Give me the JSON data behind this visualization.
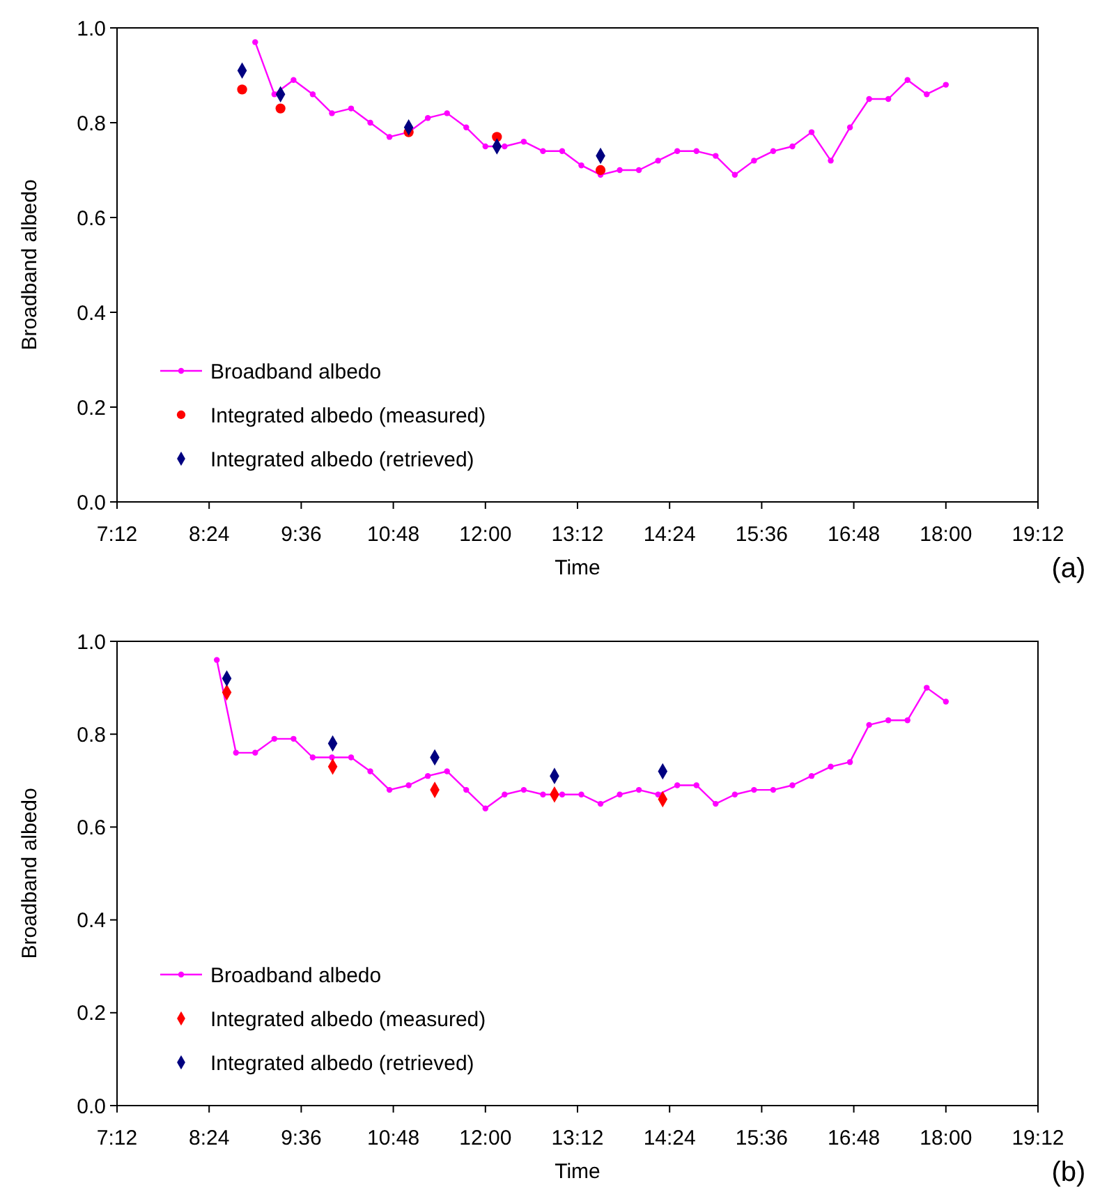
{
  "chart_data": [
    {
      "type": "line",
      "xlabel": "Time",
      "ylabel": "Broadband albedo",
      "xlim": [
        7.2,
        19.2
      ],
      "xticks": [
        {
          "value": 7.2,
          "label": "7:12"
        },
        {
          "value": 8.4,
          "label": "8:24"
        },
        {
          "value": 9.6,
          "label": "9:36"
        },
        {
          "value": 10.8,
          "label": "10:48"
        },
        {
          "value": 12,
          "label": "12:00"
        },
        {
          "value": 13.2,
          "label": "13:12"
        },
        {
          "value": 14.4,
          "label": "14:24"
        },
        {
          "value": 15.6,
          "label": "15:36"
        },
        {
          "value": 16.8,
          "label": "16:48"
        },
        {
          "value": 18,
          "label": "18:00"
        },
        {
          "value": 19.2,
          "label": "19:12"
        }
      ],
      "ylim": [
        0,
        1
      ],
      "yticks": [
        {
          "value": 0,
          "label": "0.0"
        },
        {
          "value": 0.2,
          "label": "0.2"
        },
        {
          "value": 0.4,
          "label": "0.4"
        },
        {
          "value": 0.6,
          "label": "0.6"
        },
        {
          "value": 0.8,
          "label": "0.8"
        },
        {
          "value": 1,
          "label": "1.0"
        }
      ],
      "grid": false,
      "legend": "bottom left",
      "annotations": [
        "(a)"
      ],
      "series": [
        {
          "name": "Broadband albedo",
          "color": "#ff00ff",
          "marker": "circle",
          "line_style": "solid",
          "x": [
            9,
            9.25,
            9.5,
            9.75,
            10,
            10.25,
            10.5,
            10.75,
            11,
            11.25,
            11.5,
            11.75,
            12,
            12.25,
            12.5,
            12.75,
            13,
            13.25,
            13.5,
            13.75,
            14,
            14.25,
            14.5,
            14.75,
            15,
            15.25,
            15.5,
            15.75,
            16,
            16.25,
            16.5,
            16.75,
            17,
            17.25,
            17.5,
            17.75,
            18
          ],
          "values": [
            0.97,
            0.86,
            0.89,
            0.86,
            0.82,
            0.83,
            0.8,
            0.77,
            0.78,
            0.81,
            0.82,
            0.79,
            0.75,
            0.75,
            0.76,
            0.74,
            0.74,
            0.71,
            0.69,
            0.7,
            0.7,
            0.72,
            0.74,
            0.74,
            0.73,
            0.69,
            0.72,
            0.74,
            0.75,
            0.78,
            0.72,
            0.79,
            0.85,
            0.85,
            0.89,
            0.86,
            0.88
          ]
        },
        {
          "name": "Integrated albedo (measured)",
          "type": "scatter",
          "color": "#ff0000",
          "marker": "circle",
          "x": [
            8.83,
            9.33,
            11,
            12.15,
            13.5
          ],
          "values": [
            0.87,
            0.83,
            0.78,
            0.77,
            0.7
          ]
        },
        {
          "name": "Integrated albedo (retrieved)",
          "type": "scatter",
          "color": "#000080",
          "marker": "diamond",
          "x": [
            8.83,
            9.33,
            11,
            12.15,
            13.5
          ],
          "values": [
            0.91,
            0.86,
            0.79,
            0.75,
            0.73
          ]
        }
      ]
    },
    {
      "type": "line",
      "xlabel": "Time",
      "ylabel": "Broadband albedo",
      "xlim": [
        7.2,
        19.2
      ],
      "xticks": [
        {
          "value": 7.2,
          "label": "7:12"
        },
        {
          "value": 8.4,
          "label": "8:24"
        },
        {
          "value": 9.6,
          "label": "9:36"
        },
        {
          "value": 10.8,
          "label": "10:48"
        },
        {
          "value": 12,
          "label": "12:00"
        },
        {
          "value": 13.2,
          "label": "13:12"
        },
        {
          "value": 14.4,
          "label": "14:24"
        },
        {
          "value": 15.6,
          "label": "15:36"
        },
        {
          "value": 16.8,
          "label": "16:48"
        },
        {
          "value": 18,
          "label": "18:00"
        },
        {
          "value": 19.2,
          "label": "19:12"
        }
      ],
      "ylim": [
        0,
        1
      ],
      "yticks": [
        {
          "value": 0,
          "label": "0.0"
        },
        {
          "value": 0.2,
          "label": "0.2"
        },
        {
          "value": 0.4,
          "label": "0.4"
        },
        {
          "value": 0.6,
          "label": "0.6"
        },
        {
          "value": 0.8,
          "label": "0.8"
        },
        {
          "value": 1,
          "label": "1.0"
        }
      ],
      "grid": false,
      "legend": "bottom left",
      "annotations": [
        "(b)"
      ],
      "series": [
        {
          "name": "Broadband albedo",
          "color": "#ff00ff",
          "marker": "circle",
          "line_style": "solid",
          "x": [
            8.5,
            8.75,
            9,
            9.25,
            9.5,
            9.75,
            10,
            10.25,
            10.5,
            10.75,
            11,
            11.25,
            11.5,
            11.75,
            12,
            12.25,
            12.5,
            12.75,
            13,
            13.25,
            13.5,
            13.75,
            14,
            14.25,
            14.5,
            14.75,
            15,
            15.25,
            15.5,
            15.75,
            16,
            16.25,
            16.5,
            16.75,
            17,
            17.25,
            17.5,
            17.75,
            18
          ],
          "values": [
            0.96,
            0.76,
            0.76,
            0.79,
            0.79,
            0.75,
            0.75,
            0.75,
            0.72,
            0.68,
            0.69,
            0.71,
            0.72,
            0.68,
            0.64,
            0.67,
            0.68,
            0.67,
            0.67,
            0.67,
            0.65,
            0.67,
            0.68,
            0.67,
            0.69,
            0.69,
            0.65,
            0.67,
            0.68,
            0.68,
            0.69,
            0.71,
            0.73,
            0.74,
            0.82,
            0.83,
            0.83,
            0.9,
            0.87
          ]
        },
        {
          "name": "Integrated albedo (measured)",
          "type": "scatter",
          "color": "#ff0000",
          "marker": "diamond",
          "x": [
            8.63,
            10.01,
            11.34,
            12.9,
            14.31
          ],
          "values": [
            0.89,
            0.73,
            0.68,
            0.67,
            0.66
          ]
        },
        {
          "name": "Integrated albedo (retrieved)",
          "type": "scatter",
          "color": "#000080",
          "marker": "diamond",
          "x": [
            8.63,
            10.01,
            11.34,
            12.9,
            14.31
          ],
          "values": [
            0.92,
            0.78,
            0.75,
            0.71,
            0.72
          ]
        }
      ]
    }
  ]
}
